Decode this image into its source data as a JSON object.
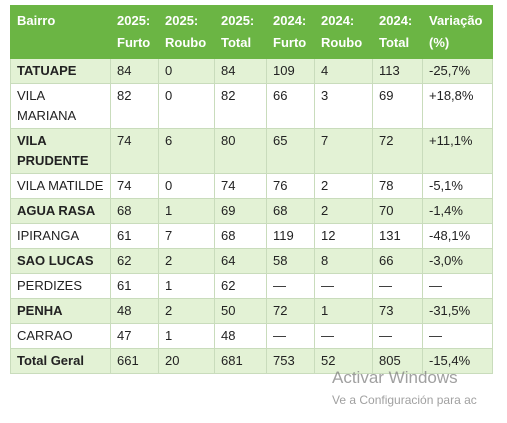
{
  "table": {
    "headers": [
      "Bairro",
      "2025: Furto",
      "2025: Roubo",
      "2025: Total",
      "2024: Furto",
      "2024: Roubo",
      "2024: Total",
      "Variação (%)"
    ],
    "rows": [
      [
        "TATUAPE",
        "84",
        "0",
        "84",
        "109",
        "4",
        "113",
        "-25,7%"
      ],
      [
        "VILA MARIANA",
        "82",
        "0",
        "82",
        "66",
        "3",
        "69",
        "+18,8%"
      ],
      [
        "VILA PRUDENTE",
        "74",
        "6",
        "80",
        "65",
        "7",
        "72",
        "+11,1%"
      ],
      [
        "VILA MATILDE",
        "74",
        "0",
        "74",
        "76",
        "2",
        "78",
        "-5,1%"
      ],
      [
        "AGUA RASA",
        "68",
        "1",
        "69",
        "68",
        "2",
        "70",
        "-1,4%"
      ],
      [
        "IPIRANGA",
        "61",
        "7",
        "68",
        "119",
        "12",
        "131",
        "-48,1%"
      ],
      [
        "SAO LUCAS",
        "62",
        "2",
        "64",
        "58",
        "8",
        "66",
        "-3,0%"
      ],
      [
        "PERDIZES",
        "61",
        "1",
        "62",
        "—",
        "—",
        "—",
        "—"
      ],
      [
        "PENHA",
        "48",
        "2",
        "50",
        "72",
        "1",
        "73",
        "-31,5%"
      ],
      [
        "CARRAO",
        "47",
        "1",
        "48",
        "—",
        "—",
        "—",
        "—"
      ],
      [
        "Total Geral",
        "661",
        "20",
        "681",
        "753",
        "52",
        "805",
        "-15,4%"
      ]
    ]
  },
  "watermark": {
    "title": "Activar Windows",
    "subtitle": "Ve a Configuración para ac"
  }
}
